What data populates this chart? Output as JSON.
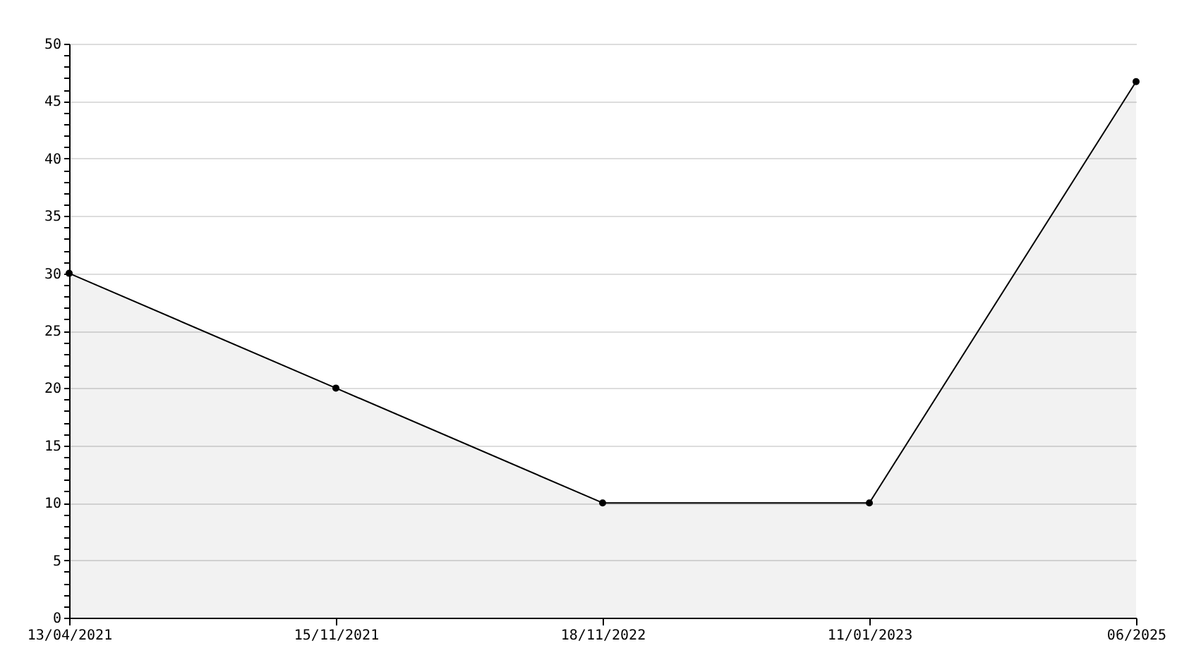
{
  "chart_data": {
    "type": "area",
    "categories": [
      "13/04/2021",
      "15/11/2021",
      "18/11/2022",
      "11/01/2023",
      "06/2025"
    ],
    "series": [
      {
        "color": "#000000",
        "values": [
          30,
          20,
          10,
          10,
          46.7
        ]
      }
    ],
    "ylim": [
      0,
      50
    ],
    "yticks": [
      0,
      {
        "value": 1,
        "label": null
      },
      {
        "value": 2,
        "label": null
      },
      {
        "value": 3,
        "label": null
      },
      {
        "value": 4,
        "label": null
      },
      5,
      {
        "value": 6,
        "label": null
      },
      {
        "value": 7,
        "label": null
      },
      {
        "value": 8,
        "label": null
      },
      {
        "value": 9,
        "label": null
      },
      10,
      {
        "value": 11,
        "label": null
      },
      {
        "value": 12,
        "label": null
      },
      {
        "value": 13,
        "label": null
      },
      {
        "value": 14,
        "label": null
      },
      15,
      {
        "value": 16,
        "label": null
      },
      {
        "value": 17,
        "label": null
      },
      {
        "value": 18,
        "label": null
      },
      {
        "value": 19,
        "label": null
      },
      20,
      {
        "value": 21,
        "label": null
      },
      {
        "value": 22,
        "label": null
      },
      {
        "value": 23,
        "label": null
      },
      {
        "value": 24,
        "label": null
      },
      25,
      {
        "value": 26,
        "label": null
      },
      {
        "value": 27,
        "label": null
      },
      {
        "value": 28,
        "label": null
      },
      {
        "value": 29,
        "label": null
      },
      30,
      {
        "value": 31,
        "label": null
      },
      {
        "value": 32,
        "label": null
      },
      {
        "value": 33,
        "label": null
      },
      {
        "value": 34,
        "label": null
      },
      35,
      {
        "value": 36,
        "label": null
      },
      {
        "value": 37,
        "label": null
      },
      {
        "value": 38,
        "label": null
      },
      {
        "value": 39,
        "label": null
      },
      40,
      {
        "value": 41,
        "label": null
      },
      {
        "value": 42,
        "label": null
      },
      {
        "value": 43,
        "label": null
      },
      {
        "value": 44,
        "label": null
      },
      45,
      {
        "value": 46,
        "label": null
      },
      {
        "value": 47,
        "label": null
      },
      {
        "value": 48,
        "label": null
      },
      {
        "value": 49,
        "label": null
      },
      50
    ],
    "grid": "y",
    "marker": "circle",
    "line_style": "solid"
  }
}
